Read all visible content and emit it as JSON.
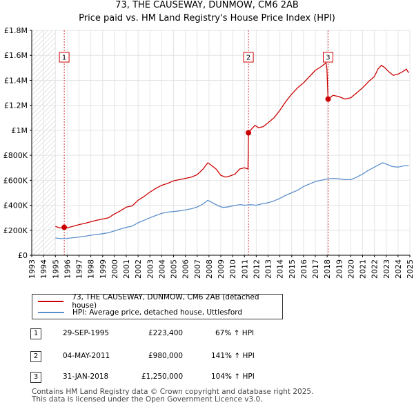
{
  "chart_data": {
    "type": "line",
    "title": "73, THE CAUSEWAY, DUNMOW, CM6 2AB",
    "subtitle": "Price paid vs. HM Land Registry's House Price Index (HPI)",
    "xlim": [
      1993,
      2025
    ],
    "ylim": [
      0,
      1800000
    ],
    "x_ticks": [
      "1993",
      "1994",
      "1995",
      "1996",
      "1997",
      "1998",
      "1999",
      "2000",
      "2001",
      "2002",
      "2003",
      "2004",
      "2005",
      "2006",
      "2007",
      "2008",
      "2009",
      "2010",
      "2011",
      "2012",
      "2013",
      "2014",
      "2015",
      "2016",
      "2017",
      "2018",
      "2019",
      "2020",
      "2021",
      "2022",
      "2023",
      "2024",
      "2025"
    ],
    "y_ticks": [
      {
        "value": 0,
        "label": "£0"
      },
      {
        "value": 200000,
        "label": "£200K"
      },
      {
        "value": 400000,
        "label": "£400K"
      },
      {
        "value": 600000,
        "label": "£600K"
      },
      {
        "value": 800000,
        "label": "£800K"
      },
      {
        "value": 1000000,
        "label": "£1M"
      },
      {
        "value": 1200000,
        "label": "£1.2M"
      },
      {
        "value": 1400000,
        "label": "£1.4M"
      },
      {
        "value": 1600000,
        "label": "£1.6M"
      },
      {
        "value": 1800000,
        "label": "£1.8M"
      }
    ],
    "hatch_before": 1995.0,
    "series": [
      {
        "name": "73, THE CAUSEWAY, DUNMOW, CM6 2AB (detached house)",
        "color": "#cc0000",
        "points": [
          [
            1995.0,
            230000
          ],
          [
            1995.4,
            218000
          ],
          [
            1995.75,
            223400
          ],
          [
            1996.0,
            220000
          ],
          [
            1996.5,
            232000
          ],
          [
            1997.0,
            245000
          ],
          [
            1997.5,
            255000
          ],
          [
            1998.0,
            268000
          ],
          [
            1998.5,
            280000
          ],
          [
            1999.0,
            290000
          ],
          [
            1999.5,
            300000
          ],
          [
            2000.0,
            330000
          ],
          [
            2000.5,
            355000
          ],
          [
            2001.0,
            385000
          ],
          [
            2001.5,
            395000
          ],
          [
            2002.0,
            440000
          ],
          [
            2002.5,
            470000
          ],
          [
            2003.0,
            505000
          ],
          [
            2003.5,
            535000
          ],
          [
            2004.0,
            560000
          ],
          [
            2004.5,
            575000
          ],
          [
            2005.0,
            595000
          ],
          [
            2005.5,
            605000
          ],
          [
            2006.0,
            615000
          ],
          [
            2006.5,
            625000
          ],
          [
            2007.0,
            645000
          ],
          [
            2007.5,
            690000
          ],
          [
            2007.9,
            740000
          ],
          [
            2008.2,
            720000
          ],
          [
            2008.6,
            690000
          ],
          [
            2009.0,
            640000
          ],
          [
            2009.4,
            625000
          ],
          [
            2009.8,
            635000
          ],
          [
            2010.2,
            650000
          ],
          [
            2010.6,
            690000
          ],
          [
            2011.0,
            700000
          ],
          [
            2011.3,
            690000
          ],
          [
            2011.34,
            980000
          ],
          [
            2011.6,
            1010000
          ],
          [
            2011.9,
            1040000
          ],
          [
            2012.2,
            1020000
          ],
          [
            2012.6,
            1030000
          ],
          [
            2013.0,
            1060000
          ],
          [
            2013.5,
            1100000
          ],
          [
            2014.0,
            1160000
          ],
          [
            2014.5,
            1230000
          ],
          [
            2015.0,
            1290000
          ],
          [
            2015.5,
            1340000
          ],
          [
            2016.0,
            1380000
          ],
          [
            2016.5,
            1430000
          ],
          [
            2017.0,
            1480000
          ],
          [
            2017.5,
            1510000
          ],
          [
            2017.9,
            1540000
          ],
          [
            2017.98,
            1490000
          ],
          [
            2018.08,
            1250000
          ],
          [
            2018.5,
            1280000
          ],
          [
            2019.0,
            1270000
          ],
          [
            2019.5,
            1250000
          ],
          [
            2020.0,
            1260000
          ],
          [
            2020.5,
            1300000
          ],
          [
            2021.0,
            1340000
          ],
          [
            2021.5,
            1390000
          ],
          [
            2022.0,
            1430000
          ],
          [
            2022.3,
            1490000
          ],
          [
            2022.6,
            1520000
          ],
          [
            2022.9,
            1500000
          ],
          [
            2023.2,
            1470000
          ],
          [
            2023.6,
            1440000
          ],
          [
            2024.0,
            1450000
          ],
          [
            2024.4,
            1470000
          ],
          [
            2024.7,
            1490000
          ],
          [
            2024.9,
            1460000
          ]
        ]
      },
      {
        "name": "HPI: Average price, detached house, Uttlesford",
        "color": "#5b8fcc",
        "points": [
          [
            1995.0,
            138000
          ],
          [
            1995.5,
            133000
          ],
          [
            1996.0,
            135000
          ],
          [
            1996.5,
            140000
          ],
          [
            1997.0,
            146000
          ],
          [
            1997.5,
            152000
          ],
          [
            1998.0,
            160000
          ],
          [
            1998.5,
            166000
          ],
          [
            1999.0,
            172000
          ],
          [
            1999.5,
            180000
          ],
          [
            2000.0,
            195000
          ],
          [
            2000.5,
            210000
          ],
          [
            2001.0,
            223000
          ],
          [
            2001.5,
            233000
          ],
          [
            2002.0,
            260000
          ],
          [
            2002.5,
            280000
          ],
          [
            2003.0,
            300000
          ],
          [
            2003.5,
            318000
          ],
          [
            2004.0,
            335000
          ],
          [
            2004.5,
            345000
          ],
          [
            2005.0,
            350000
          ],
          [
            2005.5,
            355000
          ],
          [
            2006.0,
            362000
          ],
          [
            2006.5,
            372000
          ],
          [
            2007.0,
            386000
          ],
          [
            2007.5,
            410000
          ],
          [
            2007.9,
            440000
          ],
          [
            2008.3,
            420000
          ],
          [
            2008.8,
            395000
          ],
          [
            2009.2,
            382000
          ],
          [
            2009.7,
            388000
          ],
          [
            2010.2,
            400000
          ],
          [
            2010.7,
            405000
          ],
          [
            2011.0,
            400000
          ],
          [
            2011.5,
            405000
          ],
          [
            2012.0,
            400000
          ],
          [
            2012.5,
            412000
          ],
          [
            2013.0,
            420000
          ],
          [
            2013.5,
            435000
          ],
          [
            2014.0,
            455000
          ],
          [
            2014.5,
            480000
          ],
          [
            2015.0,
            500000
          ],
          [
            2015.5,
            520000
          ],
          [
            2016.0,
            550000
          ],
          [
            2016.5,
            570000
          ],
          [
            2017.0,
            590000
          ],
          [
            2017.5,
            600000
          ],
          [
            2018.0,
            610000
          ],
          [
            2018.5,
            615000
          ],
          [
            2019.0,
            612000
          ],
          [
            2019.5,
            605000
          ],
          [
            2020.0,
            605000
          ],
          [
            2020.5,
            625000
          ],
          [
            2021.0,
            650000
          ],
          [
            2021.5,
            680000
          ],
          [
            2022.0,
            705000
          ],
          [
            2022.3,
            720000
          ],
          [
            2022.7,
            740000
          ],
          [
            2023.0,
            730000
          ],
          [
            2023.5,
            710000
          ],
          [
            2024.0,
            705000
          ],
          [
            2024.5,
            715000
          ],
          [
            2024.9,
            720000
          ]
        ]
      }
    ],
    "sales": [
      {
        "label": "1",
        "x": 1995.75,
        "price": 223400,
        "date": "29-SEP-1995",
        "price_text": "£223,400",
        "hpi_text": "67% ↑ HPI"
      },
      {
        "label": "2",
        "x": 2011.34,
        "price": 980000,
        "date": "04-MAY-2011",
        "price_text": "£980,000",
        "hpi_text": "141% ↑ HPI"
      },
      {
        "label": "3",
        "x": 2018.08,
        "price": 1250000,
        "date": "31-JAN-2018",
        "price_text": "£1,250,000",
        "hpi_text": "104% ↑ HPI"
      }
    ]
  },
  "legend": {
    "property": "73, THE CAUSEWAY, DUNMOW, CM6 2AB (detached house)",
    "hpi": "HPI: Average price, detached house, Uttlesford"
  },
  "footer": {
    "line1": "Contains HM Land Registry data © Crown copyright and database right 2025.",
    "line2": "This data is licensed under the Open Government Licence v3.0."
  }
}
